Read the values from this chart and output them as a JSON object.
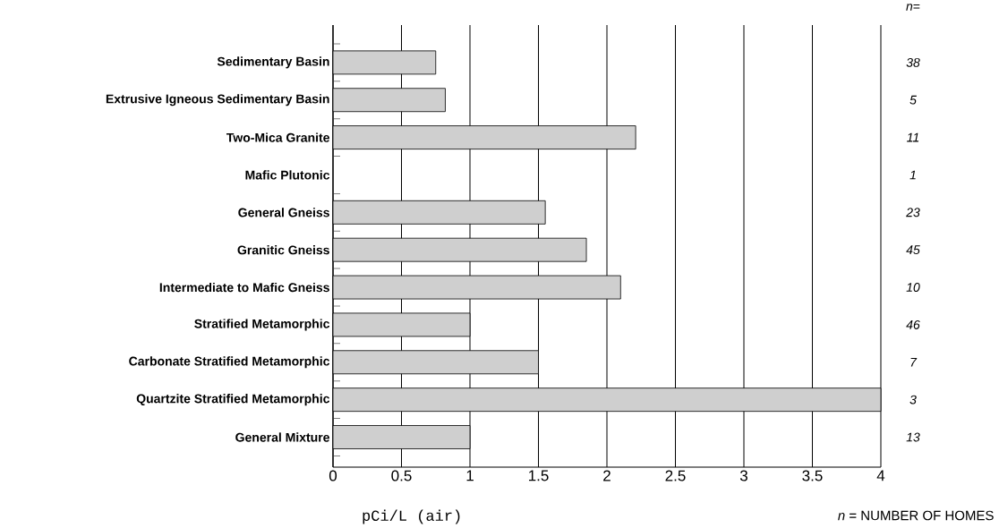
{
  "chart_data": {
    "type": "bar",
    "orientation": "horizontal",
    "categories": [
      "Sedimentary Basin",
      "Extrusive Igneous Sedimentary Basin",
      "Two-Mica Granite",
      "Mafic Plutonic",
      "General Gneiss",
      "Granitic Gneiss",
      "Intermediate to Mafic Gneiss",
      "Stratified Metamorphic",
      "Carbonate Stratified Metamorphic",
      "Quartzite Stratified Metamorphic",
      "General Mixture"
    ],
    "values": [
      0.75,
      0.82,
      2.21,
      null,
      1.55,
      1.85,
      2.1,
      1.0,
      1.5,
      4.0,
      1.0
    ],
    "color": "#cfcfcf",
    "xlim": [
      0,
      4
    ],
    "xticks": [
      0,
      0.5,
      1,
      1.5,
      2,
      2.5,
      3,
      3.5,
      4
    ],
    "xlabel": "pCi/L (air)",
    "grid": "x",
    "annotations": [
      "*n*=",
      "38",
      "5",
      "11",
      "1",
      "23",
      "45",
      "10",
      "46",
      "7",
      "3",
      "13",
      "*n* = NUMBER OF HOMES"
    ]
  }
}
